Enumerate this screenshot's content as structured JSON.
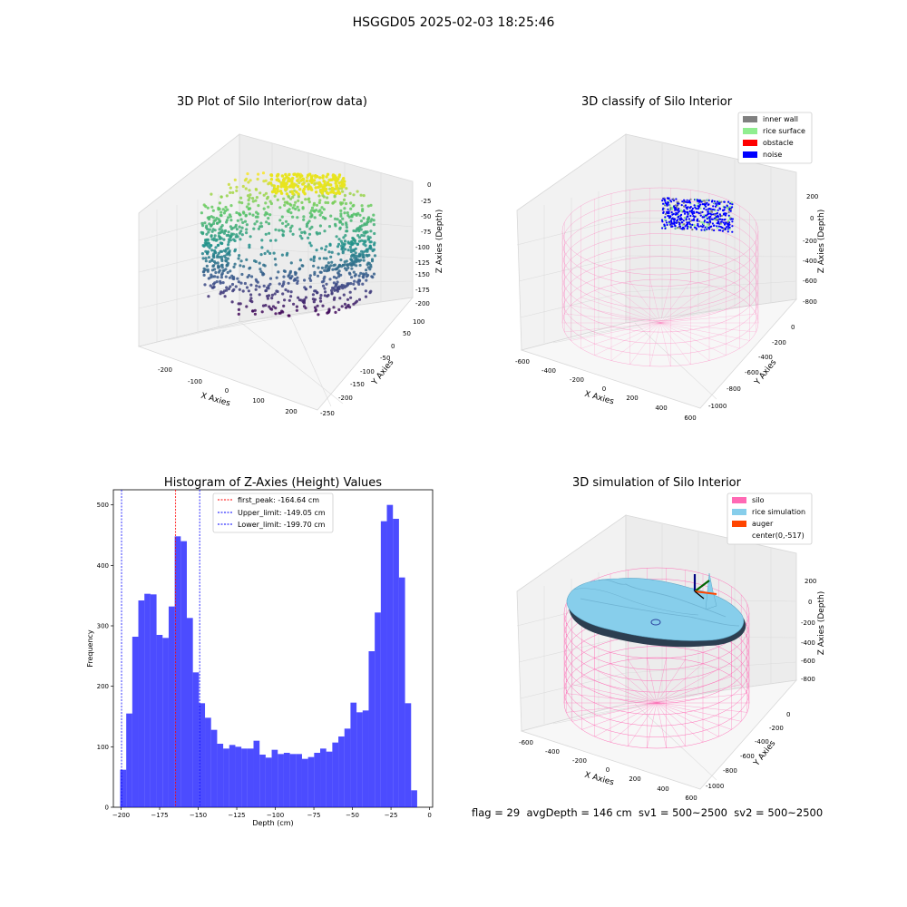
{
  "figure": {
    "suptitle": "HSGGD05 2025-02-03 18:25:46",
    "status_line": "flag = 29  avgDepth = 146 cm  sv1 = 500~2500  sv2 = 500~2500"
  },
  "panels": {
    "raw": {
      "title": "3D Plot of Silo Interior(row data)",
      "xlabel": "X Axies",
      "ylabel": "Y Axies",
      "zlabel": "Z Axies (Depth)",
      "xticks": [
        "-200",
        "-100",
        "0",
        "100",
        "200"
      ],
      "yticks": [
        "100",
        "50",
        "0",
        "-50",
        "-100",
        "-150",
        "-200",
        "-250"
      ],
      "zticks": [
        "0",
        "-25",
        "-50",
        "-75",
        "-100",
        "-125",
        "-150",
        "-175",
        "-200"
      ]
    },
    "classify": {
      "title": "3D classify of Silo Interior",
      "xlabel": "X Axies",
      "ylabel": "Y Axies",
      "zlabel": "Z Axies (Depth)",
      "xticks": [
        "-600",
        "-400",
        "-200",
        "0",
        "200",
        "400",
        "600"
      ],
      "yticks": [
        "0",
        "-200",
        "-400",
        "-600",
        "-800",
        "-1000"
      ],
      "zticks": [
        "200",
        "0",
        "-200",
        "-400",
        "-600",
        "-800"
      ],
      "legend": [
        {
          "label": "inner wall",
          "color": "#808080"
        },
        {
          "label": "rice surface",
          "color": "#90ee90"
        },
        {
          "label": "obstacle",
          "color": "#ff0000"
        },
        {
          "label": "noise",
          "color": "#0000ff"
        }
      ]
    },
    "simulation": {
      "title": "3D simulation of Silo Interior",
      "xlabel": "X Axies",
      "ylabel": "Y Axies",
      "zlabel": "Z Axies (Depth)",
      "xticks": [
        "-600",
        "-400",
        "-200",
        "0",
        "200",
        "400",
        "600"
      ],
      "yticks": [
        "0",
        "-200",
        "-400",
        "-600",
        "-800",
        "-1000"
      ],
      "zticks": [
        "200",
        "0",
        "-200",
        "-400",
        "-600",
        "-800"
      ],
      "legend": [
        {
          "label": "silo",
          "color": "#ff69b4"
        },
        {
          "label": "rice simulation",
          "color": "#87ceeb"
        },
        {
          "label": "auger",
          "color": "#ff4500"
        },
        {
          "label": "center(0,-517)",
          "color": ""
        }
      ]
    }
  },
  "chart_data": [
    {
      "type": "histogram",
      "title": "Histogram of Z-Axies (Height) Values",
      "xlabel": "Depth (cm)",
      "ylabel": "Frequency",
      "xlim": [
        -205,
        2
      ],
      "ylim": [
        0,
        525
      ],
      "xticks": [
        -200,
        -175,
        -150,
        -125,
        -100,
        -75,
        -50,
        -25,
        0
      ],
      "yticks": [
        0,
        100,
        200,
        300,
        400,
        500
      ],
      "bar_color": "#0000ff",
      "bin_start": -200.6,
      "bin_width": 3.93,
      "counts": [
        62,
        155,
        282,
        342,
        353,
        352,
        285,
        280,
        332,
        448,
        440,
        313,
        223,
        172,
        148,
        128,
        105,
        97,
        103,
        100,
        97,
        97,
        110,
        87,
        82,
        95,
        88,
        90,
        88,
        88,
        80,
        83,
        90,
        97,
        92,
        107,
        117,
        130,
        173,
        157,
        160,
        258,
        322,
        473,
        500,
        477,
        380,
        172,
        28
      ],
      "vlines": [
        {
          "label": "first_peak: -164.64 cm",
          "x": -164.64,
          "color": "#ff0000"
        },
        {
          "label": "Upper_limit: -149.05 cm",
          "x": -149.05,
          "color": "#0000ff"
        },
        {
          "label": "Lower_limit: -199.70 cm",
          "x": -199.7,
          "color": "#0000ff"
        }
      ]
    }
  ]
}
